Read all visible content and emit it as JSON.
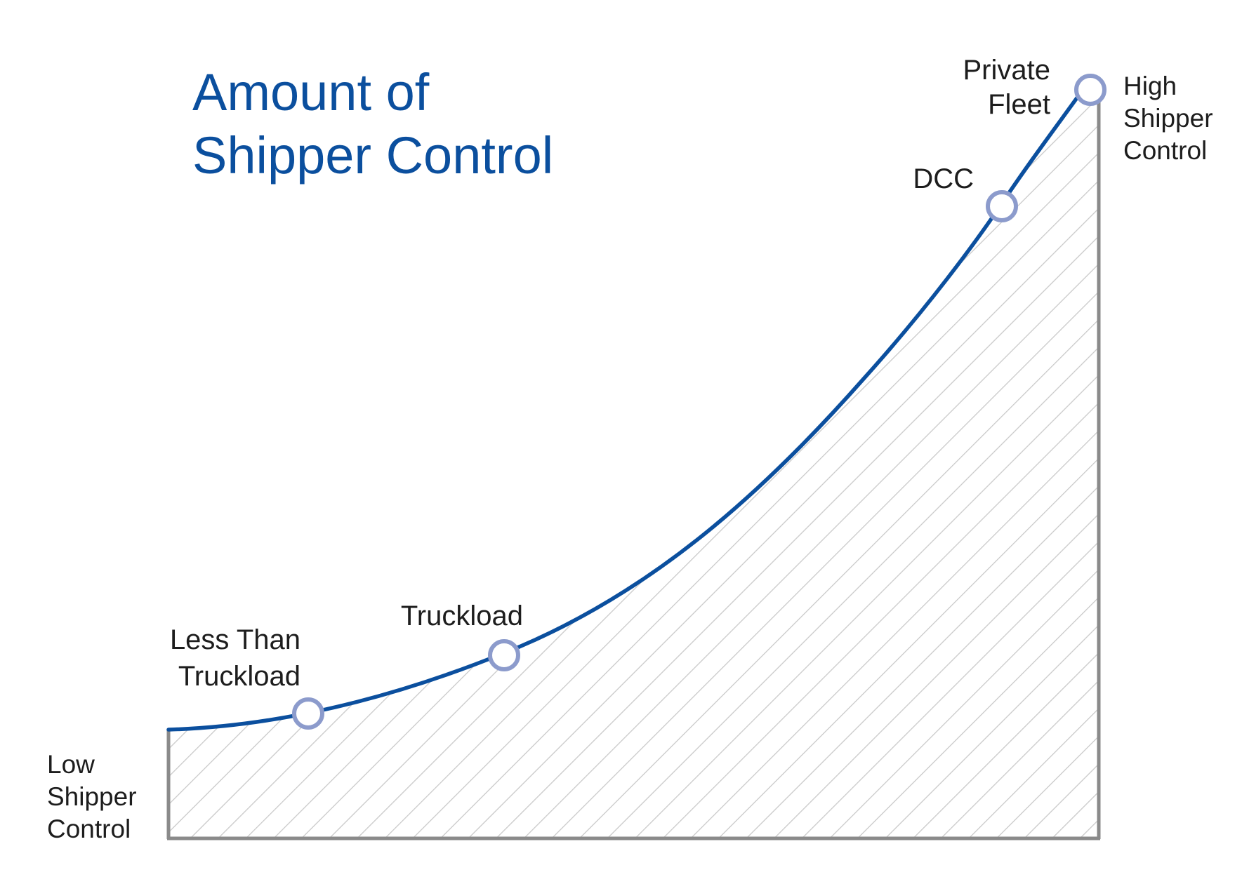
{
  "title": {
    "line1": "Amount of",
    "line2": "Shipper Control"
  },
  "axis_labels": {
    "low": [
      "Low",
      "Shipper",
      "Control"
    ],
    "high": [
      "High",
      "Shipper",
      "Control"
    ]
  },
  "points": [
    {
      "label": [
        "Less Than",
        "Truckload"
      ]
    },
    {
      "label": [
        "Truckload"
      ]
    },
    {
      "label": [
        "DCC"
      ]
    },
    {
      "label": [
        "Private",
        "Fleet"
      ]
    }
  ],
  "colors": {
    "curve": "#0b4f9e",
    "title": "#0b4f9e",
    "marker_stroke": "#8c9bcc",
    "marker_fill": "#ffffff",
    "hatch": "#c9c9c9",
    "axis": "#8a8a8a",
    "text": "#1d1d1d"
  }
}
